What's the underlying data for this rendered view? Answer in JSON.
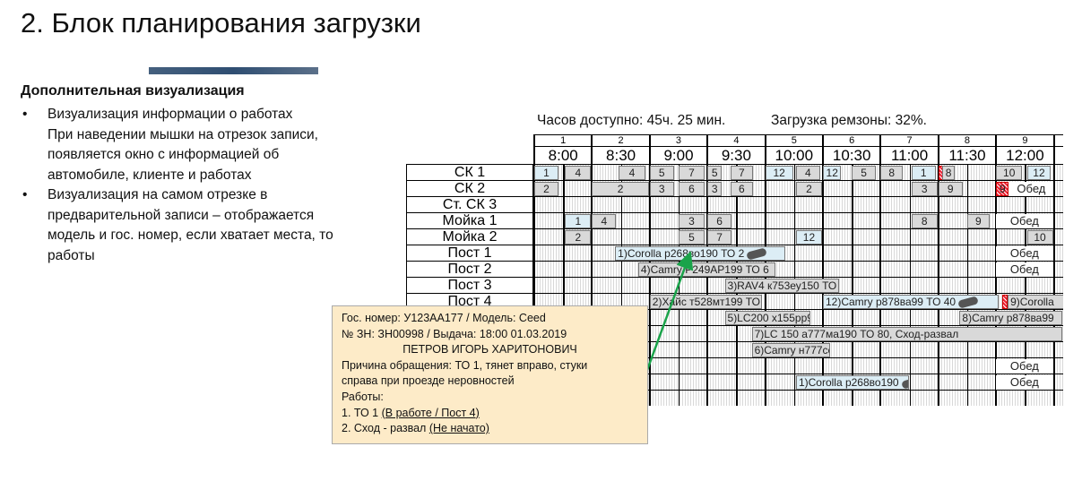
{
  "slide": {
    "title": "2. Блок планирования загрузки",
    "subtitle": "Дополнительная визуализация",
    "bullets": [
      {
        "head": "Визуализация информации о работах",
        "lines": [
          "При наведении мышки на отрезок записи,",
          "появляется окно с информацией об",
          "автомобиле, клиенте и работах"
        ]
      },
      {
        "head": "Визуализация на самом отрезке в",
        "lines": [
          "предварительной записи – отображается",
          "модель и гос. номер, если хватает места, то",
          "работы"
        ]
      }
    ],
    "bullet_char": "•"
  },
  "schedule": {
    "hours_available": "Часов доступно: 45ч. 25 мин.",
    "load": "Загрузка ремзоны: 32%.",
    "columns": [
      {
        "num": "1",
        "time": "8:00"
      },
      {
        "num": "2",
        "time": "8:30"
      },
      {
        "num": "3",
        "time": "9:00"
      },
      {
        "num": "4",
        "time": "9:30"
      },
      {
        "num": "5",
        "time": "10:00"
      },
      {
        "num": "6",
        "time": "10:30"
      },
      {
        "num": "7",
        "time": "11:00"
      },
      {
        "num": "8",
        "time": "11:30"
      },
      {
        "num": "9",
        "time": "12:00"
      },
      {
        "num": "10",
        "time": "12:30"
      }
    ],
    "rows": [
      {
        "label": "СК 1",
        "bars": [
          {
            "from": "8:00",
            "to": "8:13",
            "text": "1",
            "style": "blue"
          },
          {
            "from": "8:16",
            "to": "8:30",
            "text": "4",
            "style": "gray"
          },
          {
            "from": "8:44",
            "to": "8:58",
            "text": "4",
            "style": "gray"
          },
          {
            "from": "9:00",
            "to": "9:13",
            "text": "5",
            "style": "gray"
          },
          {
            "from": "9:15",
            "to": "9:29",
            "text": "7",
            "style": "gray"
          },
          {
            "from": "9:30",
            "to": "9:38",
            "text": "5",
            "style": "gray"
          },
          {
            "from": "9:42",
            "to": "9:54",
            "text": "7",
            "style": "gray"
          },
          {
            "from": "10:00",
            "to": "10:15",
            "text": "12",
            "style": "blue"
          },
          {
            "from": "10:16",
            "to": "10:29",
            "text": "4",
            "style": "gray"
          },
          {
            "from": "10:30",
            "to": "10:40",
            "text": "12",
            "style": "blue"
          },
          {
            "from": "10:45",
            "to": "10:58",
            "text": "5",
            "style": "gray"
          },
          {
            "from": "11:00",
            "to": "11:12",
            "text": "8",
            "style": "gray"
          },
          {
            "from": "11:16",
            "to": "11:29",
            "text": "1",
            "style": "blue"
          },
          {
            "from": "11:30",
            "to": "11:32",
            "text": "",
            "style": "red"
          },
          {
            "from": "11:32",
            "to": "11:39",
            "text": "8",
            "style": "gray"
          },
          {
            "from": "12:00",
            "to": "12:14",
            "text": "10",
            "style": "gray"
          },
          {
            "from": "12:16",
            "to": "12:29",
            "text": "12",
            "style": "blue"
          }
        ]
      },
      {
        "label": "СК 2",
        "bars": [
          {
            "from": "8:00",
            "to": "8:13",
            "text": "2",
            "style": "gray"
          },
          {
            "from": "8:30",
            "to": "9:00",
            "text": "2",
            "style": "gray"
          },
          {
            "from": "9:00",
            "to": "9:13",
            "text": "3",
            "style": "gray"
          },
          {
            "from": "9:15",
            "to": "9:29",
            "text": "6",
            "style": "gray"
          },
          {
            "from": "9:30",
            "to": "9:38",
            "text": "3",
            "style": "gray"
          },
          {
            "from": "9:42",
            "to": "9:54",
            "text": "6",
            "style": "gray"
          },
          {
            "from": "10:16",
            "to": "10:30",
            "text": "2",
            "style": "gray"
          },
          {
            "from": "11:16",
            "to": "11:30",
            "text": "3",
            "style": "gray"
          },
          {
            "from": "11:30",
            "to": "11:43",
            "text": "9",
            "style": "gray"
          },
          {
            "from": "12:00",
            "to": "12:07",
            "text": "9",
            "style": "red"
          },
          {
            "from": "12:07",
            "to": "12:30",
            "text": "Обед",
            "style": "plain"
          }
        ]
      },
      {
        "label": "Ст. СК 3",
        "bars": []
      },
      {
        "label": "Мойка 1",
        "bars": [
          {
            "from": "8:16",
            "to": "8:30",
            "text": "1",
            "style": "blue"
          },
          {
            "from": "8:30",
            "to": "8:43",
            "text": "4",
            "style": "gray"
          },
          {
            "from": "9:15",
            "to": "9:29",
            "text": "3",
            "style": "gray"
          },
          {
            "from": "9:30",
            "to": "9:43",
            "text": "6",
            "style": "gray"
          },
          {
            "from": "11:16",
            "to": "11:30",
            "text": "8",
            "style": "gray"
          },
          {
            "from": "11:45",
            "to": "11:57",
            "text": "9",
            "style": "gray"
          },
          {
            "from": "12:00",
            "to": "12:30",
            "text": "Обед",
            "style": "plain"
          }
        ]
      },
      {
        "label": "Мойка 2",
        "bars": [
          {
            "from": "8:16",
            "to": "8:30",
            "text": "2",
            "style": "gray"
          },
          {
            "from": "9:15",
            "to": "9:29",
            "text": "5",
            "style": "gray"
          },
          {
            "from": "9:30",
            "to": "9:43",
            "text": "7",
            "style": "gray"
          },
          {
            "from": "10:16",
            "to": "10:30",
            "text": "12",
            "style": "blue"
          },
          {
            "from": "12:16",
            "to": "12:30",
            "text": "10",
            "style": "gray"
          }
        ]
      },
      {
        "label": "Пост 1",
        "bars": [
          {
            "from": "8:42",
            "to": "10:11",
            "text": "1)Corolla р268во190 ТО 2",
            "style": "blue",
            "icon": "car"
          },
          {
            "from": "12:00",
            "to": "12:30",
            "text": "Обед",
            "style": "plain"
          }
        ]
      },
      {
        "label": "Пост 2",
        "bars": [
          {
            "from": "8:54",
            "to": "10:06",
            "text": "4)Camry Р249АР199 ТО 6",
            "style": "gray"
          },
          {
            "from": "12:00",
            "to": "12:30",
            "text": "Обед",
            "style": "plain"
          }
        ]
      },
      {
        "label": "Пост 3",
        "bars": [
          {
            "from": "9:39",
            "to": "10:39",
            "text": "3)RAV4 к753еу150 ТО 4",
            "style": "gray",
            "icon": "car-cancelled"
          }
        ]
      },
      {
        "label": "Пост 4",
        "bars": [
          {
            "from": "9:00",
            "to": "9:59",
            "text": "2)Хайс т528мт199 ТО",
            "style": "gray"
          },
          {
            "from": "10:30",
            "to": "12:02",
            "text": "12)Camry р878ва99 ТО 40",
            "style": "blue",
            "icon": "car"
          },
          {
            "from": "12:03",
            "to": "12:05",
            "text": "",
            "style": "red"
          },
          {
            "from": "12:06",
            "to": "12:45",
            "text": "9)Corolla",
            "style": "gray"
          }
        ]
      },
      {
        "label": "",
        "bars": [
          {
            "from": "9:39",
            "to": "10:24",
            "text": "5)LC200 х155рр99",
            "style": "gray"
          },
          {
            "from": "11:41",
            "to": "12:35",
            "text": "8)Camry р878ва99",
            "style": "gray"
          }
        ]
      },
      {
        "label": "",
        "bars": [
          {
            "from": "9:53",
            "to": "12:35",
            "text": "7)LC 150 а777ма190 ТО 80, Сход-развал",
            "style": "gray"
          }
        ]
      },
      {
        "label": "",
        "bars": [
          {
            "from": "9:53",
            "to": "10:34",
            "text": "6)Camry н777сс99",
            "style": "gray"
          }
        ]
      },
      {
        "label": "",
        "bars": [
          {
            "from": "12:00",
            "to": "12:30",
            "text": "Обед",
            "style": "plain"
          }
        ]
      },
      {
        "label": "",
        "bars": [
          {
            "from": "10:16",
            "to": "11:15",
            "text": "1)Corolla р268во190",
            "style": "blue",
            "icon": "car"
          },
          {
            "from": "12:00",
            "to": "12:30",
            "text": "Обед",
            "style": "plain"
          }
        ]
      },
      {
        "label": "",
        "bars": []
      }
    ]
  },
  "tooltip": {
    "line1": "Гос. номер: У123АА177 / Модель: Ceed",
    "line2": "№ ЗН: ЗН00998 / Выдача: 18:00 01.03.2019",
    "client": "ПЕТРОВ ИГОРЬ ХАРИТОНОВИЧ",
    "reason1": "Причина обращения: ТО 1, тянет вправо, стуки",
    "reason2": "справа при проезде неровностей",
    "works_label": "Работы:",
    "work1": "1. ТО 1 ",
    "work1_status": "(В работе / Пост 4)",
    "work2": "2. Сход - развал ",
    "work2_status": "(Не начато)"
  },
  "colors": {
    "arrow": "#1aa34a",
    "tooltip_bg": "#fdebc8",
    "bar_blue": "#dcedf5",
    "bar_gray": "#d9d9d9",
    "conflict": "#e22233"
  }
}
